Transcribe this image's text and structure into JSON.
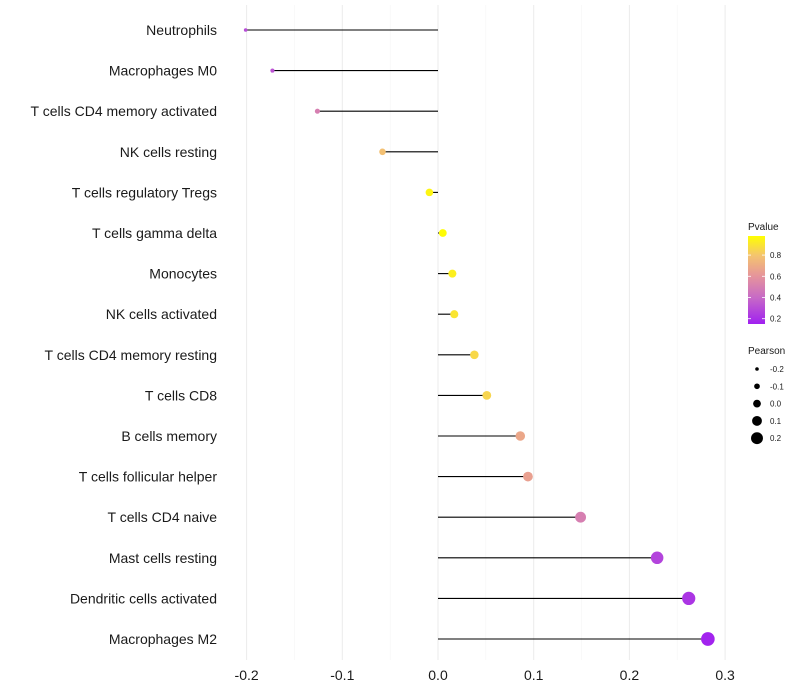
{
  "chart_data": {
    "type": "lollipop",
    "title": "",
    "xlabel": "",
    "ylabel": "",
    "xlim": [
      -0.215,
      0.305
    ],
    "x_ticks": [
      -0.2,
      -0.1,
      0.0,
      0.1,
      0.2,
      0.3
    ],
    "x_tick_labels": [
      "-0.2",
      "-0.1",
      "0.0",
      "0.1",
      "0.2",
      "0.3"
    ],
    "grid": true,
    "categories": [
      "Neutrophils",
      "Macrophages M0",
      "T cells CD4 memory activated",
      "NK cells resting",
      "T cells regulatory  Tregs",
      "T cells gamma delta",
      "Monocytes",
      "NK cells activated",
      "T cells CD4 memory resting",
      "T cells CD8",
      "B cells memory",
      "T cells follicular helper",
      "T cells CD4 naive",
      "Mast cells resting",
      "Dendritic cells activated",
      "Macrophages M2"
    ],
    "pearson": [
      -0.201,
      -0.173,
      -0.126,
      -0.058,
      -0.009,
      0.005,
      0.015,
      0.017,
      0.038,
      0.051,
      0.086,
      0.094,
      0.149,
      0.229,
      0.262,
      0.282
    ],
    "pvalue": [
      0.3,
      0.32,
      0.5,
      0.78,
      0.95,
      0.97,
      0.93,
      0.9,
      0.86,
      0.85,
      0.68,
      0.65,
      0.5,
      0.27,
      0.22,
      0.16
    ],
    "legends": {
      "color": {
        "title": "Pvalue",
        "ticks": [
          0.8,
          0.6,
          0.4,
          0.2
        ],
        "tick_labels": [
          "0.8",
          "0.6",
          "0.4",
          "0.2"
        ],
        "range": [
          0.15,
          0.98
        ],
        "low_color": "#A020F0",
        "high_color": "#FFFF00",
        "placement": "right"
      },
      "size": {
        "title": "Pearson",
        "values": [
          -0.2,
          -0.1,
          0.0,
          0.1,
          0.2
        ],
        "labels": [
          "-0.2",
          "-0.1",
          "0.0",
          "0.1",
          "0.2"
        ],
        "placement": "right"
      }
    }
  }
}
